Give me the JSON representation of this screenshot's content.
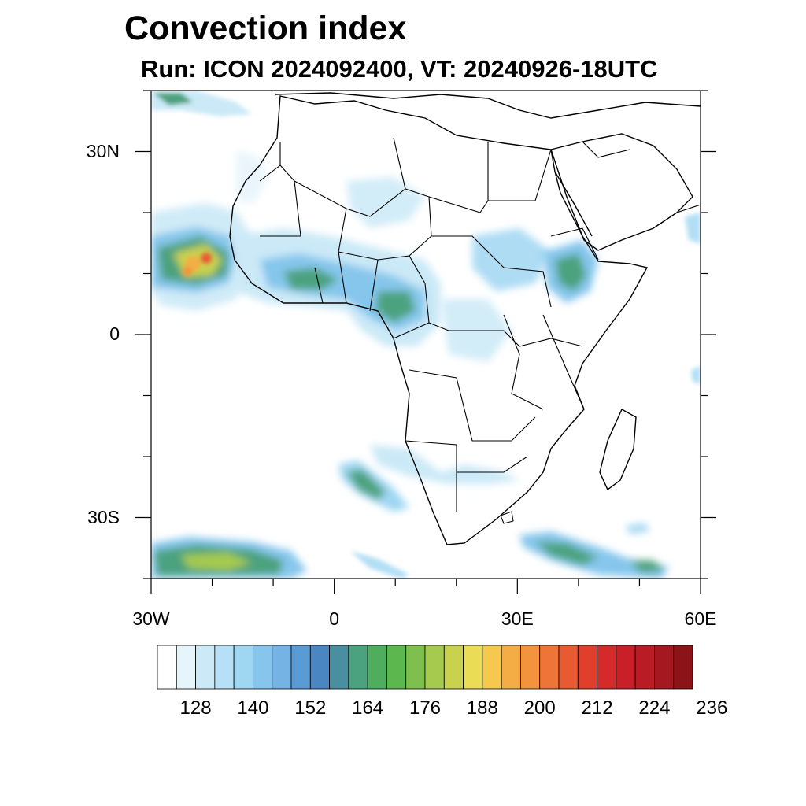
{
  "title": "Convection index",
  "subtitle": "Run: ICON 2024092400,  VT: 20240926-18UTC",
  "map": {
    "lon_range": [
      -30,
      60
    ],
    "lat_range": [
      -40,
      40
    ],
    "lat_ticks": [
      {
        "value": 30,
        "label": "30N"
      },
      {
        "value": 0,
        "label": "0"
      },
      {
        "value": -30,
        "label": "30S"
      }
    ],
    "lon_ticks": [
      {
        "value": -30,
        "label": "30W"
      },
      {
        "value": 0,
        "label": "0"
      },
      {
        "value": 30,
        "label": "30E"
      },
      {
        "value": 60,
        "label": "60E"
      }
    ]
  },
  "colorbar": {
    "labels": [
      "128",
      "140",
      "152",
      "164",
      "176",
      "188",
      "200",
      "212",
      "224",
      "236"
    ],
    "colors": [
      "#ffffff",
      "#e6f4fb",
      "#cbe9f7",
      "#b6e0f5",
      "#9fd6f2",
      "#86c6ec",
      "#74b3e3",
      "#5b9bd3",
      "#4a86c1",
      "#4a8fa0",
      "#4ba27e",
      "#4eae5e",
      "#5cb84e",
      "#7dc04e",
      "#a6ca4e",
      "#c9d24e",
      "#eadc55",
      "#f5c84e",
      "#f4ad45",
      "#f3933e",
      "#ee7537",
      "#e85a30",
      "#e13f2b",
      "#d52a2a",
      "#c81f28",
      "#b91c24",
      "#a5181f",
      "#8c1419"
    ]
  },
  "convection_cells": [
    {
      "lon": -25,
      "lat": 11,
      "index": 210
    },
    {
      "lon": -19,
      "lat": 11,
      "index": 165
    },
    {
      "lon": -8,
      "lat": 7,
      "index": 165
    },
    {
      "lon": 9,
      "lat": 5,
      "index": 165
    },
    {
      "lon": 39,
      "lat": 10,
      "index": 160
    },
    {
      "lon": -20,
      "lat": -37,
      "index": 176
    },
    {
      "lon": 35,
      "lat": -36,
      "index": 176
    },
    {
      "lon": 3,
      "lat": -27,
      "index": 165
    },
    {
      "lon": 47,
      "lat": -38,
      "index": 165
    },
    {
      "lon": -27,
      "lat": 39,
      "index": 160
    }
  ]
}
